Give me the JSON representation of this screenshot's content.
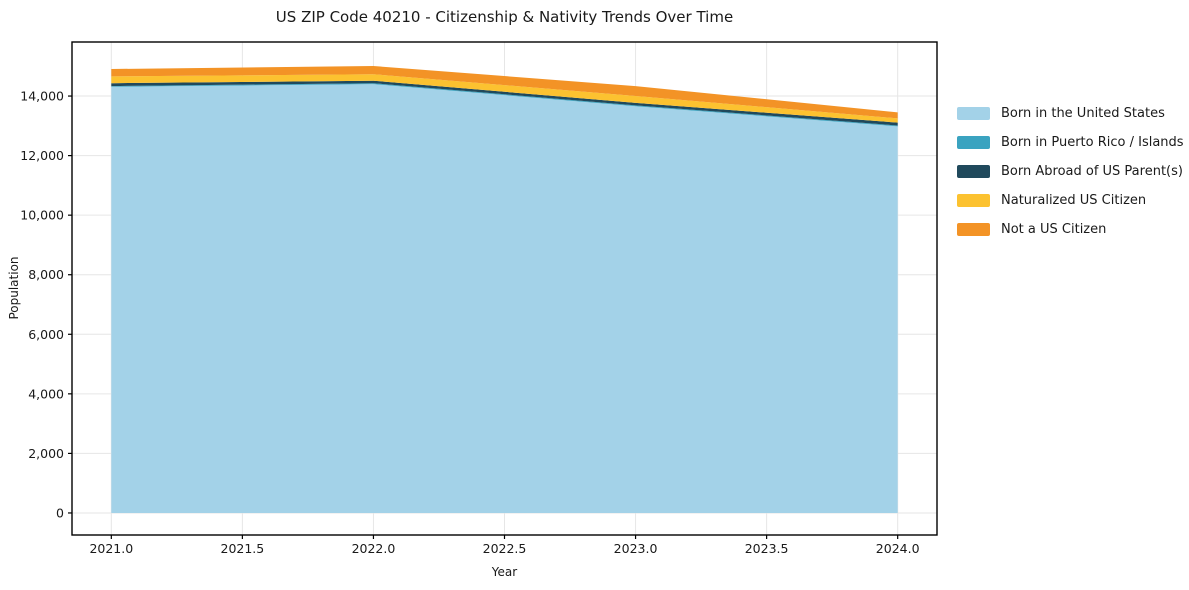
{
  "title": "US ZIP Code 40210 - Citizenship & Nativity Trends Over Time",
  "chart_data": {
    "type": "area",
    "stacked": true,
    "title": "US ZIP Code 40210 - Citizenship & Nativity Trends Over Time",
    "xlabel": "Year",
    "ylabel": "Population",
    "x": [
      2021,
      2022,
      2023,
      2024
    ],
    "series": [
      {
        "name": "Born in the United States",
        "color": "#a3d2e8",
        "values": [
          14310,
          14400,
          13660,
          12980
        ]
      },
      {
        "name": "Born in Puerto Rico / Islands",
        "color": "#3aa3c0",
        "values": [
          25,
          30,
          25,
          30
        ]
      },
      {
        "name": "Born Abroad of US Parent(s)",
        "color": "#20495c",
        "values": [
          95,
          85,
          85,
          100
        ]
      },
      {
        "name": "Naturalized US Citizen",
        "color": "#fcc230",
        "values": [
          230,
          220,
          230,
          140
        ]
      },
      {
        "name": "Not a US Citizen",
        "color": "#f39326",
        "values": [
          250,
          275,
          335,
          200
        ]
      }
    ],
    "xlim": [
      2020.85,
      2024.15
    ],
    "ylim": [
      -740,
      15815
    ],
    "xticks": {
      "values": [
        2021.0,
        2021.5,
        2022.0,
        2022.5,
        2023.0,
        2023.5,
        2024.0
      ],
      "labels": [
        "2021.0",
        "2021.5",
        "2022.0",
        "2022.5",
        "2023.0",
        "2023.5",
        "2024.0"
      ]
    },
    "yticks": {
      "values": [
        0,
        2000,
        4000,
        6000,
        8000,
        10000,
        12000,
        14000
      ],
      "labels": [
        "0",
        "2,000",
        "4,000",
        "6,000",
        "8,000",
        "10,000",
        "12,000",
        "14,000"
      ]
    },
    "grid": true,
    "grid_color": "#e6e6e6",
    "spine_color": "#000000",
    "legend_position": "right"
  }
}
